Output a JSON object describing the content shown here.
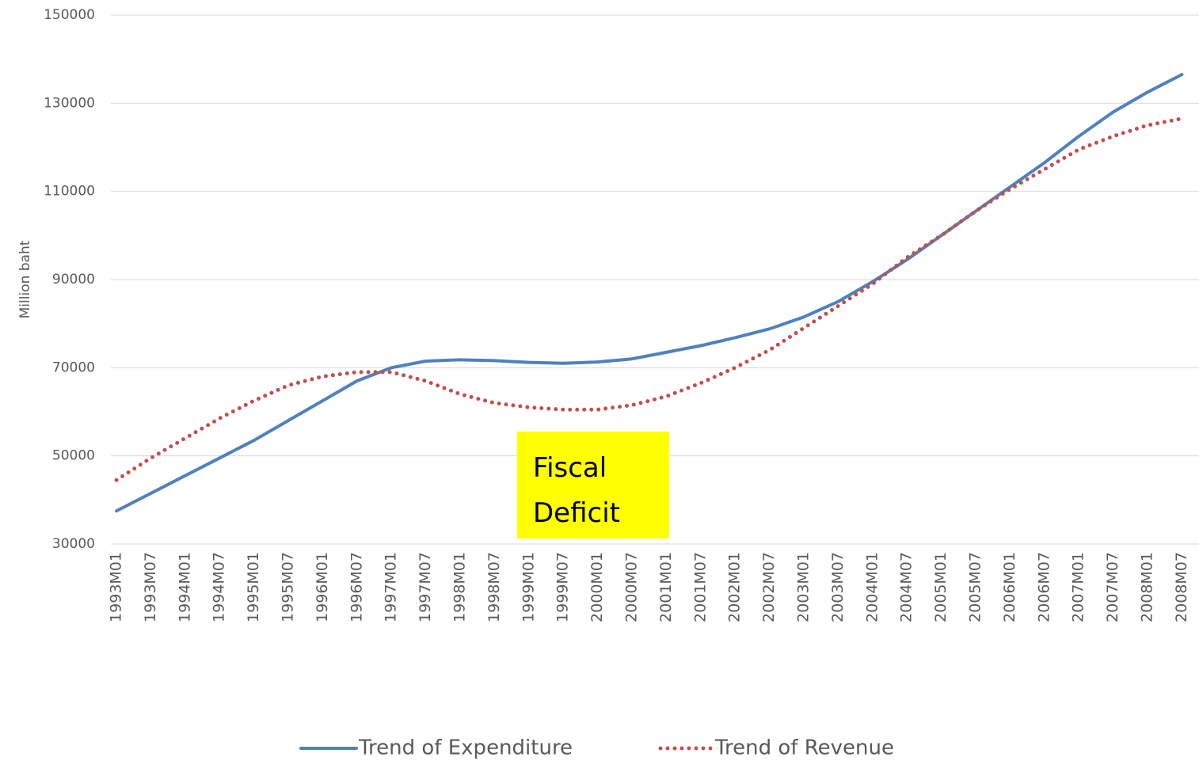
{
  "chart_data": {
    "type": "line",
    "y_label": "Million baht",
    "annotation": "Fiscal Deficit",
    "categories": [
      "1993M01",
      "1993M07",
      "1994M01",
      "1994M07",
      "1995M01",
      "1995M07",
      "1996M01",
      "1996M07",
      "1997M01",
      "1997M07",
      "1998M01",
      "1998M07",
      "1999M01",
      "1999M07",
      "2000M01",
      "2000M07",
      "2001M01",
      "2001M07",
      "2002M01",
      "2002M07",
      "2003M01",
      "2003M07",
      "2004M01",
      "2004M07",
      "2005M01",
      "2005M07",
      "2006M01",
      "2006M07",
      "2007M01",
      "2007M07",
      "2008M01",
      "2008M07"
    ],
    "series": [
      {
        "name": "Trend of Expenditure",
        "color": "#4f81bd",
        "style": "solid",
        "values": [
          37500,
          41500,
          45500,
          49500,
          53500,
          58000,
          62500,
          67000,
          70000,
          71500,
          71800,
          71600,
          71200,
          71000,
          71300,
          72000,
          73500,
          75000,
          76800,
          78800,
          81500,
          85000,
          89500,
          94500,
          100000,
          105500,
          111000,
          116500,
          122500,
          128000,
          132500,
          136500
        ]
      },
      {
        "name": "Trend of Revenue",
        "color": "#c0504d",
        "style": "dotted",
        "values": [
          44500,
          49500,
          54000,
          58500,
          62500,
          66000,
          68000,
          69000,
          69000,
          67000,
          64000,
          62000,
          61000,
          60500,
          60500,
          61500,
          63500,
          66500,
          70000,
          74000,
          79000,
          84000,
          89000,
          95000,
          100000,
          105500,
          110500,
          115000,
          119500,
          122500,
          125000,
          126500
        ]
      }
    ],
    "ylim": [
      30000,
      150000
    ],
    "yticks": [
      30000,
      50000,
      70000,
      90000,
      110000,
      130000,
      150000
    ],
    "grid": true,
    "legend": "bottom"
  }
}
